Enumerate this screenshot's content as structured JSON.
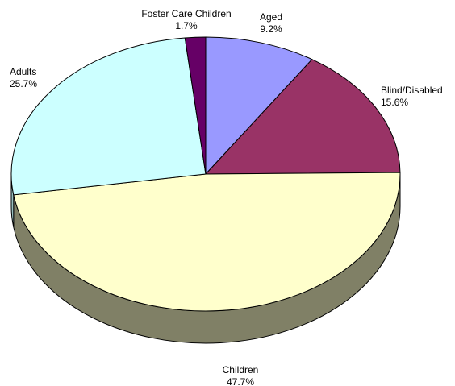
{
  "chart_data": {
    "type": "pie",
    "title": "",
    "three_d": true,
    "start_angle_deg": 0,
    "direction": "clockwise",
    "slices": [
      {
        "label": "Aged",
        "value": 9.2,
        "value_label": "9.2%",
        "color": "#9999FF",
        "side_color": "#6E6EB8"
      },
      {
        "label": "Blind/Disabled",
        "value": 15.6,
        "value_label": "15.6%",
        "color": "#993366",
        "side_color": "#6E2549"
      },
      {
        "label": "Children",
        "value": 47.7,
        "value_label": "47.7%",
        "color": "#FFFFCC",
        "side_color": "#808066"
      },
      {
        "label": "Adults",
        "value": 25.7,
        "value_label": "25.7%",
        "color": "#CCFFFF",
        "side_color": "#99BFBF"
      },
      {
        "label": "Foster Care Children",
        "value": 1.7,
        "value_label": "1.7%",
        "color": "#660066",
        "side_color": "#4A004A"
      }
    ],
    "outline_color": "#000000"
  }
}
